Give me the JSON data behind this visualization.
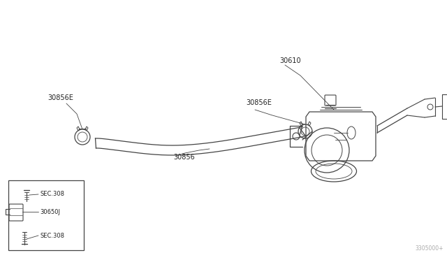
{
  "bg_color": "#ffffff",
  "line_color": "#444444",
  "label_color": "#222222",
  "figsize": [
    6.4,
    3.72
  ],
  "dpi": 100,
  "watermark": "3305000+",
  "label_30610": "30610",
  "label_30856E": "30856E",
  "label_30856": "30856",
  "label_SEC308": "SEC.308",
  "label_30650J": "30650J",
  "fontsize": 7,
  "small_fontsize": 6
}
